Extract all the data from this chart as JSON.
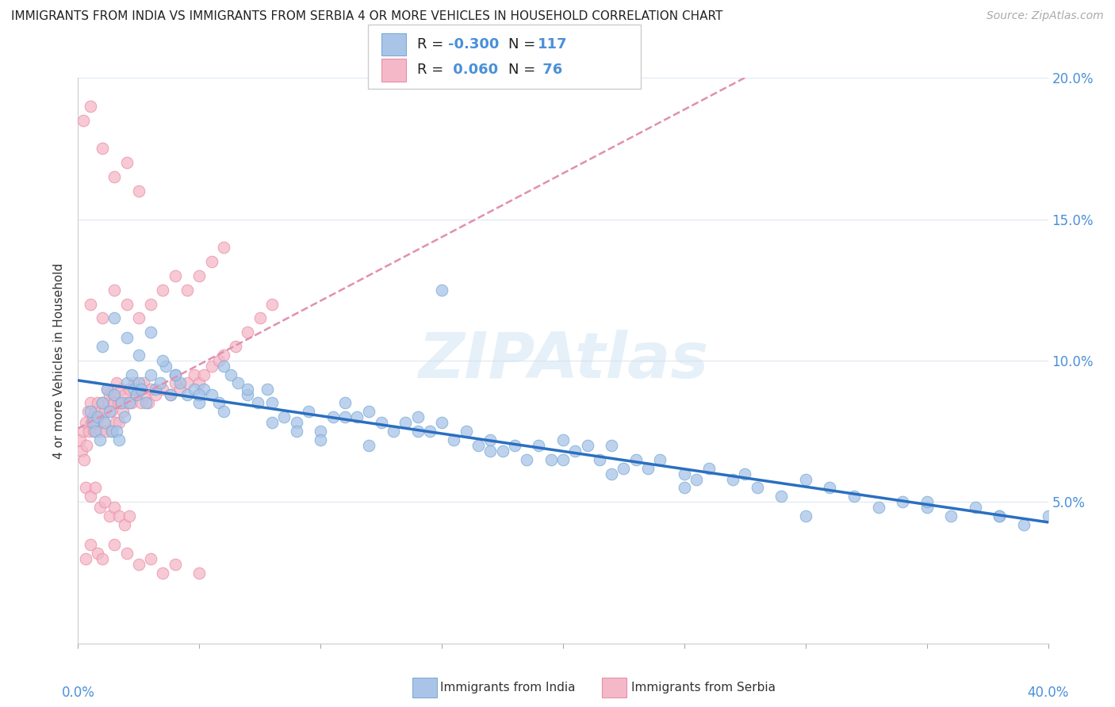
{
  "title": "IMMIGRANTS FROM INDIA VS IMMIGRANTS FROM SERBIA 4 OR MORE VEHICLES IN HOUSEHOLD CORRELATION CHART",
  "source": "Source: ZipAtlas.com",
  "ylabel": "4 or more Vehicles in Household",
  "xlim": [
    0.0,
    40.0
  ],
  "ylim": [
    0.0,
    20.0
  ],
  "india_color": "#aac4e8",
  "india_edge_color": "#7aadd4",
  "serbia_color": "#f5b8c8",
  "serbia_edge_color": "#e890a8",
  "india_R": -0.3,
  "india_N": 117,
  "serbia_R": 0.06,
  "serbia_N": 76,
  "india_line_color": "#2a6fc0",
  "serbia_line_color": "#e090b0",
  "axis_color": "#4a90d9",
  "grid_color": "#dde8f0",
  "watermark": "ZIPatlas",
  "legend_india_label": "Immigrants from India",
  "legend_serbia_label": "Immigrants from Serbia",
  "india_scatter_x": [
    0.5,
    0.6,
    0.7,
    0.8,
    0.9,
    1.0,
    1.1,
    1.2,
    1.3,
    1.4,
    1.5,
    1.6,
    1.7,
    1.8,
    1.9,
    2.0,
    2.1,
    2.2,
    2.3,
    2.4,
    2.5,
    2.6,
    2.8,
    3.0,
    3.2,
    3.4,
    3.6,
    3.8,
    4.0,
    4.2,
    4.5,
    4.8,
    5.0,
    5.2,
    5.5,
    5.8,
    6.0,
    6.3,
    6.6,
    7.0,
    7.4,
    7.8,
    8.0,
    8.5,
    9.0,
    9.5,
    10.0,
    10.5,
    11.0,
    11.5,
    12.0,
    12.5,
    13.0,
    13.5,
    14.0,
    14.5,
    15.0,
    15.5,
    16.0,
    16.5,
    17.0,
    17.5,
    18.0,
    18.5,
    19.0,
    19.5,
    20.0,
    20.5,
    21.0,
    21.5,
    22.0,
    22.5,
    23.0,
    23.5,
    24.0,
    25.0,
    25.5,
    26.0,
    27.0,
    27.5,
    28.0,
    29.0,
    30.0,
    31.0,
    32.0,
    33.0,
    34.0,
    35.0,
    36.0,
    37.0,
    38.0,
    39.0,
    40.0,
    1.0,
    1.5,
    2.0,
    2.5,
    3.0,
    3.5,
    4.0,
    5.0,
    6.0,
    8.0,
    10.0,
    12.0,
    15.0,
    20.0,
    25.0,
    30.0,
    38.0,
    7.0,
    9.0,
    11.0,
    14.0,
    17.0,
    22.0,
    35.0
  ],
  "india_scatter_y": [
    8.2,
    7.8,
    7.5,
    8.0,
    7.2,
    8.5,
    7.8,
    9.0,
    8.2,
    7.5,
    8.8,
    7.5,
    7.2,
    8.5,
    8.0,
    9.2,
    8.5,
    9.5,
    9.0,
    8.8,
    9.2,
    9.0,
    8.5,
    9.5,
    9.0,
    9.2,
    9.8,
    8.8,
    9.5,
    9.2,
    8.8,
    9.0,
    8.5,
    9.0,
    8.8,
    8.5,
    9.8,
    9.5,
    9.2,
    8.8,
    8.5,
    9.0,
    8.5,
    8.0,
    7.8,
    8.2,
    7.5,
    8.0,
    8.5,
    8.0,
    8.2,
    7.8,
    7.5,
    7.8,
    8.0,
    7.5,
    7.8,
    7.2,
    7.5,
    7.0,
    7.2,
    6.8,
    7.0,
    6.5,
    7.0,
    6.5,
    7.2,
    6.8,
    7.0,
    6.5,
    7.0,
    6.2,
    6.5,
    6.2,
    6.5,
    6.0,
    5.8,
    6.2,
    5.8,
    6.0,
    5.5,
    5.2,
    5.8,
    5.5,
    5.2,
    4.8,
    5.0,
    4.8,
    4.5,
    4.8,
    4.5,
    4.2,
    4.5,
    10.5,
    11.5,
    10.8,
    10.2,
    11.0,
    10.0,
    9.5,
    8.8,
    8.2,
    7.8,
    7.2,
    7.0,
    12.5,
    6.5,
    5.5,
    4.5,
    4.5,
    9.0,
    7.5,
    8.0,
    7.5,
    6.8,
    6.0,
    5.0
  ],
  "serbia_scatter_x": [
    0.1,
    0.15,
    0.2,
    0.25,
    0.3,
    0.35,
    0.4,
    0.45,
    0.5,
    0.55,
    0.6,
    0.65,
    0.7,
    0.75,
    0.8,
    0.85,
    0.9,
    0.95,
    1.0,
    1.05,
    1.1,
    1.15,
    1.2,
    1.25,
    1.3,
    1.35,
    1.4,
    1.45,
    1.5,
    1.55,
    1.6,
    1.65,
    1.7,
    1.75,
    1.8,
    1.85,
    1.9,
    2.0,
    2.1,
    2.2,
    2.3,
    2.4,
    2.5,
    2.6,
    2.7,
    2.8,
    2.9,
    3.0,
    3.2,
    3.5,
    3.8,
    4.0,
    4.2,
    4.5,
    4.8,
    5.0,
    5.2,
    5.5,
    5.8,
    6.0,
    6.5,
    7.0,
    7.5,
    8.0,
    0.3,
    0.5,
    0.7,
    0.9,
    1.1,
    1.3,
    1.5,
    1.7,
    1.9,
    2.1
  ],
  "serbia_scatter_y": [
    7.2,
    6.8,
    7.5,
    6.5,
    7.8,
    7.0,
    8.2,
    7.5,
    8.5,
    7.8,
    8.0,
    7.5,
    8.2,
    7.8,
    8.5,
    8.0,
    7.5,
    8.2,
    8.5,
    7.8,
    8.2,
    7.5,
    9.0,
    8.5,
    8.8,
    8.2,
    7.5,
    8.8,
    8.5,
    7.8,
    9.2,
    8.5,
    7.8,
    8.5,
    9.0,
    8.2,
    8.8,
    8.5,
    9.0,
    8.5,
    9.2,
    8.8,
    9.0,
    8.5,
    9.2,
    8.8,
    8.5,
    9.0,
    8.8,
    9.0,
    8.8,
    9.2,
    9.0,
    9.2,
    9.5,
    9.2,
    9.5,
    9.8,
    10.0,
    10.2,
    10.5,
    11.0,
    11.5,
    12.0,
    5.5,
    5.2,
    5.5,
    4.8,
    5.0,
    4.5,
    4.8,
    4.5,
    4.2,
    4.5
  ],
  "serbia_high_x": [
    0.2,
    0.5,
    1.0,
    1.5,
    2.0,
    2.5
  ],
  "serbia_high_y": [
    18.5,
    19.0,
    17.5,
    16.5,
    17.0,
    16.0
  ],
  "serbia_low_x": [
    0.3,
    0.5,
    0.8,
    1.0,
    1.5,
    2.0,
    2.5,
    3.0,
    3.5,
    4.0,
    5.0
  ],
  "serbia_low_y": [
    3.0,
    3.5,
    3.2,
    3.0,
    3.5,
    3.2,
    2.8,
    3.0,
    2.5,
    2.8,
    2.5
  ],
  "serbia_mid_x": [
    0.5,
    1.0,
    1.5,
    2.0,
    2.5,
    3.0,
    3.5,
    4.0,
    4.5,
    5.0,
    5.5,
    6.0
  ],
  "serbia_mid_y": [
    12.0,
    11.5,
    12.5,
    12.0,
    11.5,
    12.0,
    12.5,
    13.0,
    12.5,
    13.0,
    13.5,
    14.0
  ]
}
